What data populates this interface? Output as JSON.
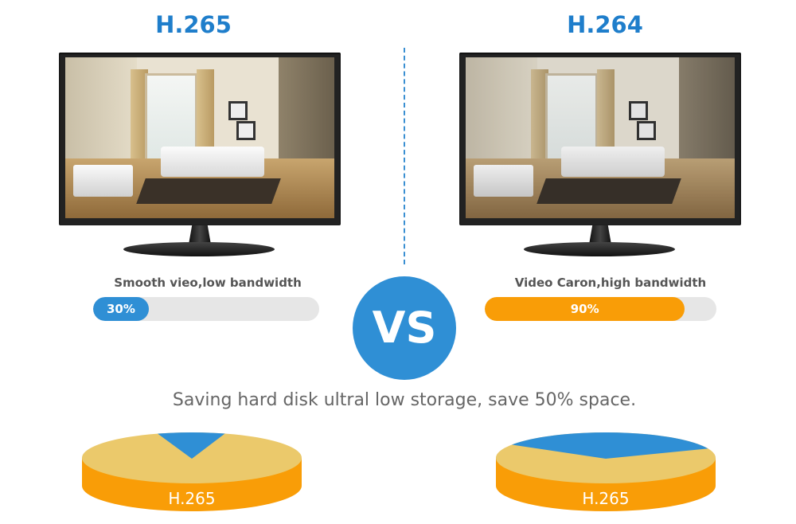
{
  "left": {
    "title": "H.265",
    "label": "Smooth vieo,low bandwidth",
    "bandwidth_percent": 30,
    "bandwidth_text": "30%",
    "bar_color": "#2f8fd5",
    "pie_label": "H.265",
    "pie_blue_fraction": 0.12
  },
  "right": {
    "title": "H.264",
    "label": "Video Caron,high bandwidth",
    "bandwidth_percent": 90,
    "bandwidth_text": "90%",
    "bar_color": "#f99d07",
    "pie_label": "H.265",
    "pie_blue_fraction": 0.38
  },
  "vs": "VS",
  "caption": "Saving hard disk ultral low storage, save 50% space.",
  "colors": {
    "blue": "#2f8fd5",
    "orange": "#f99d07",
    "pie_top": "#ebc96b",
    "title": "#1f7ecb"
  }
}
